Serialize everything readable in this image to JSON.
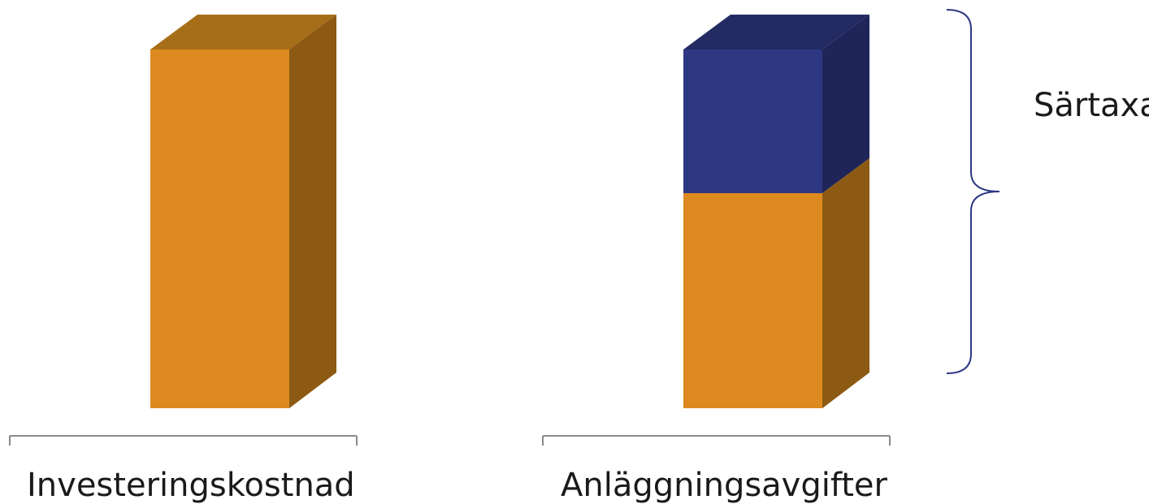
{
  "labels": {
    "left_bar": "Investeringskostnad",
    "right_bar": "Anläggningsavgifter",
    "brace": "Särtaxa"
  },
  "bars": [
    {
      "name": "investeringskostnad",
      "segments": [
        {
          "color": "orange",
          "fraction": 1.0
        }
      ]
    },
    {
      "name": "anlaggningsavgifter",
      "segments": [
        {
          "color": "orange",
          "fraction": 0.6
        },
        {
          "color": "blue",
          "fraction": 0.4
        }
      ]
    }
  ],
  "colors": {
    "orange_front": "#DC8A1F",
    "orange_side": "#8C5A12",
    "orange_top": "#A66E18",
    "blue_front": "#2E3882",
    "blue_side": "#1F2558",
    "blue_top": "#242B62",
    "brace": "#2E3882",
    "axis": "#8A8A8A"
  }
}
